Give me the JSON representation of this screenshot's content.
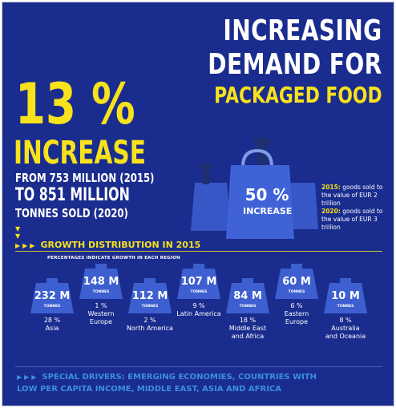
{
  "title": {
    "line1": "INCREASING",
    "line2": "DEMAND FOR",
    "line3": "PACKAGED FOOD"
  },
  "headline": {
    "percent": "13 %",
    "word": "INCREASE",
    "from": "FROM 753 MILLION (2015)",
    "to": "TO 851 MILLION",
    "tonnes": "TONNES SOLD (2020)"
  },
  "bags": {
    "percent": "50 %",
    "label": "INCREASE",
    "note1_year": "2015:",
    "note1_text": " goods sold to the value of EUR 2 trillion",
    "note2_year": "2020:",
    "note2_text": " goods sold to the value of EUR 3 trillion"
  },
  "growth": {
    "heading": "GROWTH DISTRIBUTION IN 2015",
    "subnote": "PERCENTAGES INDICATE GROWTH IN EACH REGION",
    "unit": "TONNES",
    "regions": [
      {
        "value": "232 M",
        "pct": "28 %",
        "name": "Asia",
        "name2": ""
      },
      {
        "value": "148 M",
        "pct": "1 %",
        "name": "Western",
        "name2": "Europe"
      },
      {
        "value": "112 M",
        "pct": "2 %",
        "name": "North America",
        "name2": ""
      },
      {
        "value": "107 M",
        "pct": "9 %",
        "name": "Latin America",
        "name2": ""
      },
      {
        "value": "84 M",
        "pct": "18 %",
        "name": "Middle East",
        "name2": "and Africa"
      },
      {
        "value": "60 M",
        "pct": "6 %",
        "name": "Eastern",
        "name2": "Europe"
      },
      {
        "value": "10 M",
        "pct": "8 %",
        "name": "Australia",
        "name2": "and Oceania"
      }
    ]
  },
  "drivers": {
    "line1": "SPECIAL DRIVERS: EMERGING ECONOMIES, COUNTRIES WITH",
    "line2": "LOW PER CAPITA INCOME, MIDDLE EAST, ASIA AND AFRICA"
  },
  "colors": {
    "background": "#1a2c8e",
    "accent_yellow": "#f7e21b",
    "weight_blue": "#3d5fd0",
    "drivers_blue": "#3b8fe0"
  }
}
